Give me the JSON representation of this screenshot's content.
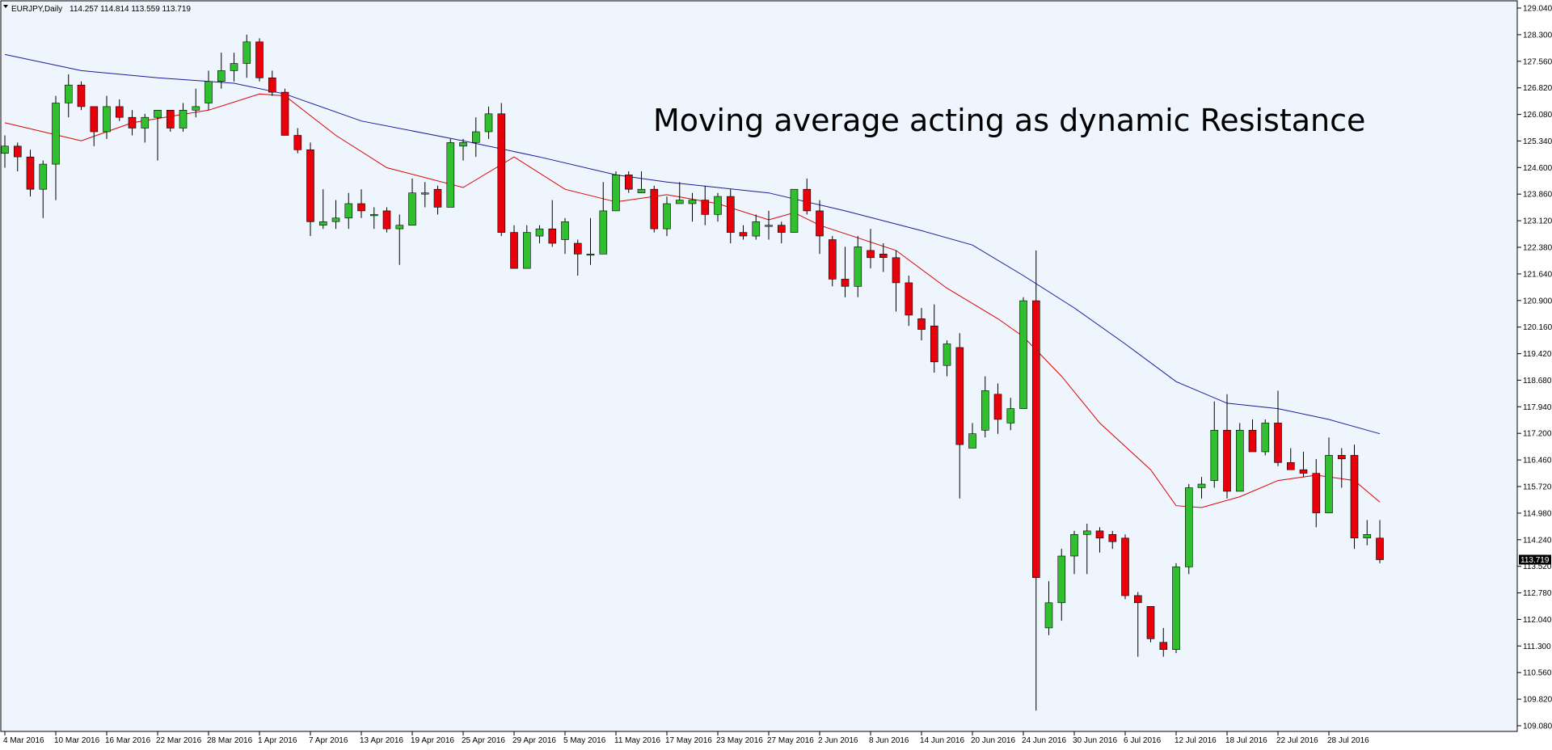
{
  "header": {
    "symbol": "EURJPY,Daily",
    "ohlc": "114.257 114.814 113.559 113.719"
  },
  "annotation": "Moving average acting as dynamic Resistance",
  "current_price_label": "113.719",
  "colors": {
    "background": "#ffffff",
    "plot_bg": "#eef5fd",
    "bull": "#2fbf2f",
    "bear": "#e8000b",
    "ma_fast": "#e00000",
    "ma_slow": "#1b1b9c",
    "price_tag": "#000000"
  },
  "chart_data": {
    "type": "candlestick",
    "ylim": [
      109.08,
      129.04
    ],
    "yticks": [
      "129.040",
      "128.300",
      "127.560",
      "126.820",
      "126.080",
      "125.340",
      "124.600",
      "123.860",
      "123.120",
      "122.380",
      "121.640",
      "120.900",
      "120.160",
      "119.420",
      "118.680",
      "117.940",
      "117.200",
      "116.460",
      "115.720",
      "114.980",
      "114.240",
      "113.520",
      "112.780",
      "112.040",
      "111.300",
      "110.560",
      "109.820",
      "109.080"
    ],
    "xticks": [
      {
        "i": 0,
        "label": "4 Mar 2016"
      },
      {
        "i": 4,
        "label": "10 Mar 2016"
      },
      {
        "i": 8,
        "label": "16 Mar 2016"
      },
      {
        "i": 12,
        "label": "22 Mar 2016"
      },
      {
        "i": 16,
        "label": "28 Mar 2016"
      },
      {
        "i": 20,
        "label": "1 Apr 2016"
      },
      {
        "i": 24,
        "label": "7 Apr 2016"
      },
      {
        "i": 28,
        "label": "13 Apr 2016"
      },
      {
        "i": 32,
        "label": "19 Apr 2016"
      },
      {
        "i": 36,
        "label": "25 Apr 2016"
      },
      {
        "i": 40,
        "label": "29 Apr 2016"
      },
      {
        "i": 44,
        "label": "5 May 2016"
      },
      {
        "i": 48,
        "label": "11 May 2016"
      },
      {
        "i": 52,
        "label": "17 May 2016"
      },
      {
        "i": 56,
        "label": "23 May 2016"
      },
      {
        "i": 60,
        "label": "27 May 2016"
      },
      {
        "i": 64,
        "label": "2 Jun 2016"
      },
      {
        "i": 68,
        "label": "8 Jun 2016"
      },
      {
        "i": 72,
        "label": "14 Jun 2016"
      },
      {
        "i": 76,
        "label": "20 Jun 2016"
      },
      {
        "i": 80,
        "label": "24 Jun 2016"
      },
      {
        "i": 84,
        "label": "30 Jun 2016"
      },
      {
        "i": 88,
        "label": "6 Jul 2016"
      },
      {
        "i": 92,
        "label": "12 Jul 2016"
      },
      {
        "i": 96,
        "label": "18 Jul 2016"
      },
      {
        "i": 100,
        "label": "22 Jul 2016"
      },
      {
        "i": 104,
        "label": "28 Jul 2016"
      }
    ],
    "candles": [
      [
        125.0,
        125.5,
        124.6,
        125.2
      ],
      [
        125.2,
        125.3,
        124.5,
        124.9
      ],
      [
        124.9,
        125.1,
        123.8,
        124.0
      ],
      [
        124.0,
        124.8,
        123.2,
        124.7
      ],
      [
        124.7,
        126.6,
        123.7,
        126.4
      ],
      [
        126.4,
        127.2,
        126.0,
        126.9
      ],
      [
        126.9,
        127.0,
        126.2,
        126.3
      ],
      [
        126.3,
        126.3,
        125.2,
        125.6
      ],
      [
        125.6,
        126.6,
        125.4,
        126.3
      ],
      [
        126.3,
        126.5,
        125.9,
        126.0
      ],
      [
        126.0,
        126.2,
        125.5,
        125.7
      ],
      [
        125.7,
        126.1,
        125.3,
        126.0
      ],
      [
        126.0,
        126.2,
        124.8,
        126.2
      ],
      [
        126.2,
        126.2,
        125.6,
        125.7
      ],
      [
        125.7,
        126.4,
        125.6,
        126.2
      ],
      [
        126.2,
        126.8,
        126.0,
        126.3
      ],
      [
        126.4,
        127.3,
        126.2,
        127.0
      ],
      [
        127.0,
        127.8,
        126.8,
        127.3
      ],
      [
        127.3,
        127.8,
        127.0,
        127.5
      ],
      [
        127.5,
        128.3,
        127.1,
        128.1
      ],
      [
        128.1,
        128.2,
        127.0,
        127.1
      ],
      [
        127.1,
        127.3,
        126.6,
        126.7
      ],
      [
        126.7,
        126.8,
        125.5,
        125.5
      ],
      [
        125.5,
        125.7,
        125.0,
        125.1
      ],
      [
        125.1,
        125.3,
        122.7,
        123.1
      ],
      [
        123.0,
        124.0,
        122.9,
        123.1
      ],
      [
        123.1,
        123.7,
        122.9,
        123.2
      ],
      [
        123.2,
        123.9,
        122.9,
        123.6
      ],
      [
        123.6,
        124.0,
        123.2,
        123.4
      ],
      [
        123.3,
        123.5,
        122.9,
        123.3
      ],
      [
        123.4,
        123.5,
        122.8,
        122.9
      ],
      [
        122.9,
        123.3,
        121.9,
        123.0
      ],
      [
        123.0,
        124.3,
        123.0,
        123.9
      ],
      [
        123.9,
        124.2,
        123.5,
        123.9
      ],
      [
        124.0,
        124.1,
        123.3,
        123.5
      ],
      [
        123.5,
        125.4,
        123.5,
        125.3
      ],
      [
        125.2,
        125.4,
        124.8,
        125.3
      ],
      [
        125.3,
        126.0,
        124.9,
        125.6
      ],
      [
        125.6,
        126.3,
        125.4,
        126.1
      ],
      [
        126.1,
        126.4,
        122.7,
        122.8
      ],
      [
        122.8,
        123.0,
        121.8,
        121.8
      ],
      [
        121.8,
        123.0,
        121.8,
        122.8
      ],
      [
        122.7,
        123.0,
        122.5,
        122.9
      ],
      [
        122.9,
        123.7,
        122.4,
        122.5
      ],
      [
        122.6,
        123.2,
        122.2,
        123.1
      ],
      [
        122.5,
        122.6,
        121.6,
        122.2
      ],
      [
        122.2,
        123.2,
        121.9,
        122.2
      ],
      [
        122.2,
        124.2,
        122.2,
        123.4
      ],
      [
        123.4,
        124.5,
        123.4,
        124.4
      ],
      [
        124.4,
        124.5,
        123.9,
        124.0
      ],
      [
        123.9,
        124.5,
        123.9,
        124.0
      ],
      [
        124.0,
        124.1,
        122.8,
        122.9
      ],
      [
        122.9,
        123.8,
        122.7,
        123.6
      ],
      [
        123.6,
        124.2,
        123.6,
        123.7
      ],
      [
        123.6,
        123.9,
        123.1,
        123.7
      ],
      [
        123.7,
        124.1,
        123.0,
        123.3
      ],
      [
        123.3,
        123.9,
        123.1,
        123.8
      ],
      [
        123.8,
        124.0,
        122.5,
        122.8
      ],
      [
        122.8,
        123.0,
        122.6,
        122.7
      ],
      [
        122.7,
        123.3,
        122.6,
        123.1
      ],
      [
        123.0,
        123.4,
        122.6,
        123.0
      ],
      [
        123.0,
        123.1,
        122.5,
        122.8
      ],
      [
        122.8,
        124.0,
        122.8,
        124.0
      ],
      [
        124.0,
        124.3,
        123.3,
        123.4
      ],
      [
        123.4,
        123.7,
        122.2,
        122.7
      ],
      [
        122.6,
        122.7,
        121.3,
        121.5
      ],
      [
        121.5,
        122.4,
        121.0,
        121.3
      ],
      [
        121.3,
        122.7,
        121.0,
        122.4
      ],
      [
        122.3,
        122.9,
        121.8,
        122.1
      ],
      [
        122.2,
        122.5,
        121.7,
        122.1
      ],
      [
        122.1,
        122.3,
        120.6,
        121.4
      ],
      [
        121.4,
        121.6,
        120.2,
        120.5
      ],
      [
        120.4,
        120.7,
        119.8,
        120.1
      ],
      [
        120.2,
        120.8,
        118.9,
        119.2
      ],
      [
        119.1,
        119.8,
        118.8,
        119.7
      ],
      [
        119.6,
        120.0,
        115.4,
        116.9
      ],
      [
        116.8,
        117.5,
        116.8,
        117.2
      ],
      [
        117.3,
        118.8,
        117.1,
        118.4
      ],
      [
        118.3,
        118.6,
        117.2,
        117.6
      ],
      [
        117.5,
        118.2,
        117.3,
        117.9
      ],
      [
        117.9,
        121.0,
        117.9,
        120.9
      ],
      [
        120.9,
        122.3,
        109.5,
        113.2
      ],
      [
        111.8,
        113.1,
        111.6,
        112.5
      ],
      [
        112.5,
        114.0,
        112.0,
        113.8
      ],
      [
        113.8,
        114.5,
        113.3,
        114.4
      ],
      [
        114.4,
        114.7,
        113.3,
        114.5
      ],
      [
        114.5,
        114.6,
        113.9,
        114.3
      ],
      [
        114.4,
        114.5,
        114.0,
        114.2
      ],
      [
        114.3,
        114.4,
        112.6,
        112.7
      ],
      [
        112.7,
        112.8,
        111.0,
        112.5
      ],
      [
        112.4,
        112.4,
        111.4,
        111.5
      ],
      [
        111.4,
        111.8,
        111.0,
        111.2
      ],
      [
        111.2,
        113.6,
        111.1,
        113.5
      ],
      [
        113.5,
        115.8,
        113.3,
        115.7
      ],
      [
        115.7,
        116.0,
        115.4,
        115.8
      ],
      [
        115.9,
        118.1,
        115.7,
        117.3
      ],
      [
        117.3,
        118.3,
        115.4,
        115.6
      ],
      [
        115.6,
        117.5,
        115.6,
        117.3
      ],
      [
        117.3,
        117.6,
        116.7,
        116.7
      ],
      [
        116.7,
        117.6,
        116.6,
        117.5
      ],
      [
        117.5,
        118.4,
        116.3,
        116.4
      ],
      [
        116.4,
        116.8,
        116.2,
        116.2
      ],
      [
        116.2,
        116.7,
        116.0,
        116.1
      ],
      [
        116.1,
        116.5,
        114.6,
        115.0
      ],
      [
        115.0,
        117.1,
        115.0,
        116.6
      ],
      [
        116.6,
        116.8,
        115.7,
        116.5
      ],
      [
        116.6,
        116.9,
        114.0,
        114.3
      ],
      [
        114.3,
        114.8,
        114.1,
        114.4
      ],
      [
        114.3,
        114.8,
        113.6,
        113.7
      ]
    ],
    "ma_fast": [
      [
        0,
        125.85
      ],
      [
        6,
        125.35
      ],
      [
        10,
        125.85
      ],
      [
        16,
        126.2
      ],
      [
        20,
        126.65
      ],
      [
        22,
        126.6
      ],
      [
        26,
        125.5
      ],
      [
        30,
        124.6
      ],
      [
        36,
        124.05
      ],
      [
        40,
        124.9
      ],
      [
        44,
        124.0
      ],
      [
        48,
        123.65
      ],
      [
        52,
        123.85
      ],
      [
        56,
        123.6
      ],
      [
        60,
        123.15
      ],
      [
        62,
        123.35
      ],
      [
        64,
        123.0
      ],
      [
        70,
        122.3
      ],
      [
        74,
        121.25
      ],
      [
        78,
        120.4
      ],
      [
        80,
        119.9
      ],
      [
        83,
        118.8
      ],
      [
        86,
        117.5
      ],
      [
        90,
        116.2
      ],
      [
        92,
        115.2
      ],
      [
        94,
        115.15
      ],
      [
        97,
        115.45
      ],
      [
        100,
        115.9
      ],
      [
        103,
        116.05
      ],
      [
        106,
        115.9
      ],
      [
        108,
        115.3
      ]
    ],
    "ma_slow": [
      [
        0,
        127.75
      ],
      [
        6,
        127.3
      ],
      [
        12,
        127.1
      ],
      [
        18,
        126.95
      ],
      [
        22,
        126.65
      ],
      [
        28,
        125.9
      ],
      [
        36,
        125.35
      ],
      [
        42,
        124.9
      ],
      [
        48,
        124.4
      ],
      [
        52,
        124.2
      ],
      [
        56,
        124.05
      ],
      [
        60,
        123.9
      ],
      [
        66,
        123.4
      ],
      [
        72,
        122.85
      ],
      [
        76,
        122.45
      ],
      [
        80,
        121.6
      ],
      [
        84,
        120.7
      ],
      [
        88,
        119.7
      ],
      [
        92,
        118.65
      ],
      [
        96,
        118.05
      ],
      [
        100,
        117.9
      ],
      [
        104,
        117.6
      ],
      [
        108,
        117.2
      ]
    ]
  }
}
